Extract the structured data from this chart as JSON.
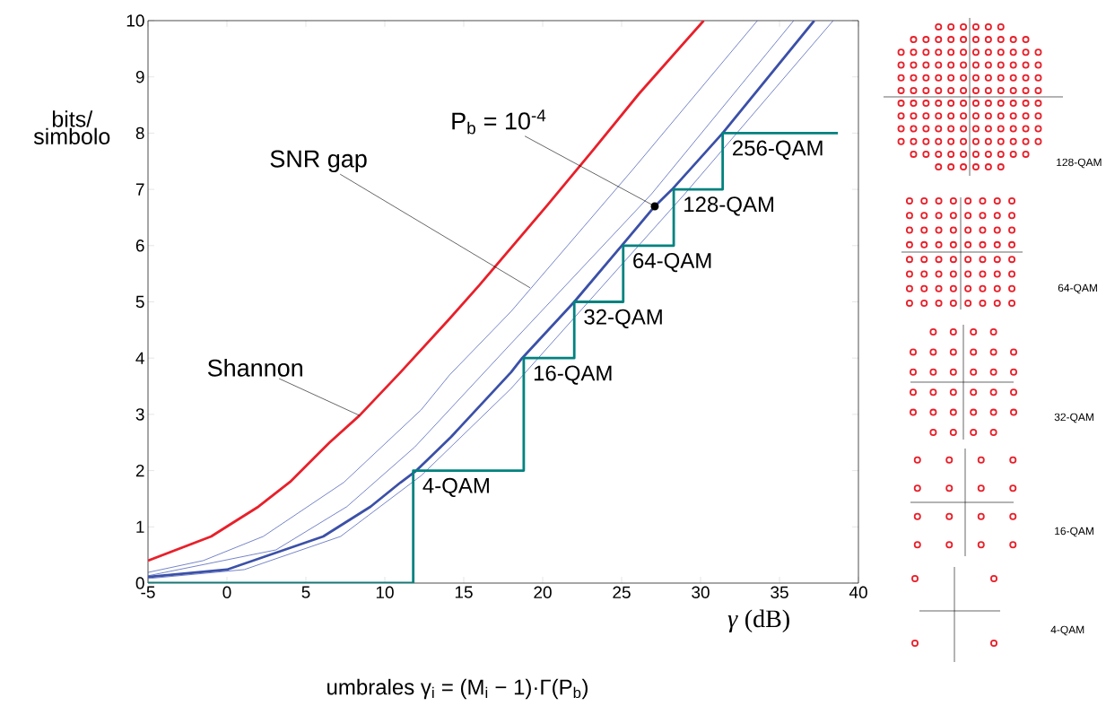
{
  "chart_data": {
    "type": "line",
    "xlabel": "*γ* (dB)",
    "ylabel": "bits/ simbolo",
    "xlim": [
      -5,
      40
    ],
    "ylim": [
      0,
      10
    ],
    "xticks": [
      -5,
      0,
      5,
      10,
      15,
      20,
      25,
      30,
      35,
      40
    ],
    "yticks": [
      0,
      1,
      2,
      3,
      4,
      5,
      6,
      7,
      8,
      9,
      10
    ],
    "series": [
      {
        "color": "#e8202a",
        "x": [
          -5,
          -1,
          2,
          4,
          6.5,
          8.4,
          11,
          14,
          16,
          20.3,
          23.2,
          26.1,
          30.2
        ],
        "values": [
          0.4,
          0.83,
          1.36,
          1.8,
          2.5,
          2.98,
          3.75,
          4.67,
          5.3,
          6.72,
          7.7,
          8.7,
          10
        ]
      },
      {
        "color": "#3b50b0",
        "x": [
          -5,
          -1.5,
          2.3,
          7.4,
          12.3,
          14.1,
          18,
          25.7,
          33.6
        ],
        "values": [
          0.19,
          0.4,
          0.83,
          1.79,
          3.08,
          3.7,
          4.83,
          7.35,
          10
        ]
      },
      {
        "color": "#3b50b0",
        "x": [
          -5,
          3.1,
          7.6,
          11.9,
          18,
          26.9,
          35.9
        ],
        "values": [
          0.13,
          0.59,
          1.36,
          2.42,
          4.26,
          6.92,
          10
        ]
      },
      {
        "color": "#3b50a8",
        "x": [
          -5,
          0,
          6.1,
          9.1,
          11,
          12,
          14.2,
          18,
          18.7,
          22,
          25.1,
          27.1,
          28.2,
          31.4,
          37.2
        ],
        "values": [
          0.11,
          0.24,
          0.83,
          1.36,
          1.79,
          2.0,
          2.6,
          3.75,
          4.0,
          5.0,
          6.03,
          6.7,
          7.0,
          8.0,
          10
        ]
      },
      {
        "color": "#3b50b0",
        "x": [
          -5,
          1.1,
          7.2,
          12.3,
          18,
          29,
          38.4
        ],
        "values": [
          0.08,
          0.24,
          0.83,
          1.91,
          3.46,
          6.92,
          10
        ]
      },
      {
        "type": "step",
        "color": "#00827f",
        "x": [
          -5,
          11.8,
          18.8,
          22,
          25.1,
          28.3,
          31.4,
          38.7
        ],
        "values": [
          0,
          2,
          4,
          5,
          6,
          7,
          8,
          8
        ]
      }
    ],
    "annotations": [
      {
        "text": "Shannon",
        "x": 8.4,
        "y": 2.98
      },
      {
        "text": "SNR gap",
        "x": 19.2,
        "y": 5.25
      },
      {
        "text": "P$_{b}$ = 10$^{-4}$",
        "x": 27.1,
        "y": 6.7
      },
      {
        "text": "4-QAM",
        "x": 11.8,
        "y": 2
      },
      {
        "text": "16-QAM",
        "x": 18.8,
        "y": 4
      },
      {
        "text": "32-QAM",
        "x": 22,
        "y": 5
      },
      {
        "text": "64-QAM",
        "x": 25.1,
        "y": 6
      },
      {
        "text": "128-QAM",
        "x": 28.3,
        "y": 7
      },
      {
        "text": "256-QAM",
        "x": 31.4,
        "y": 8
      },
      "umbrales γ$_{i}$ = (M$_{i}$ − 1)·Γ(P$_{b}$)",
      "128-QAM",
      "64-QAM",
      "32-QAM",
      "16-QAM",
      "4-QAM"
    ]
  }
}
